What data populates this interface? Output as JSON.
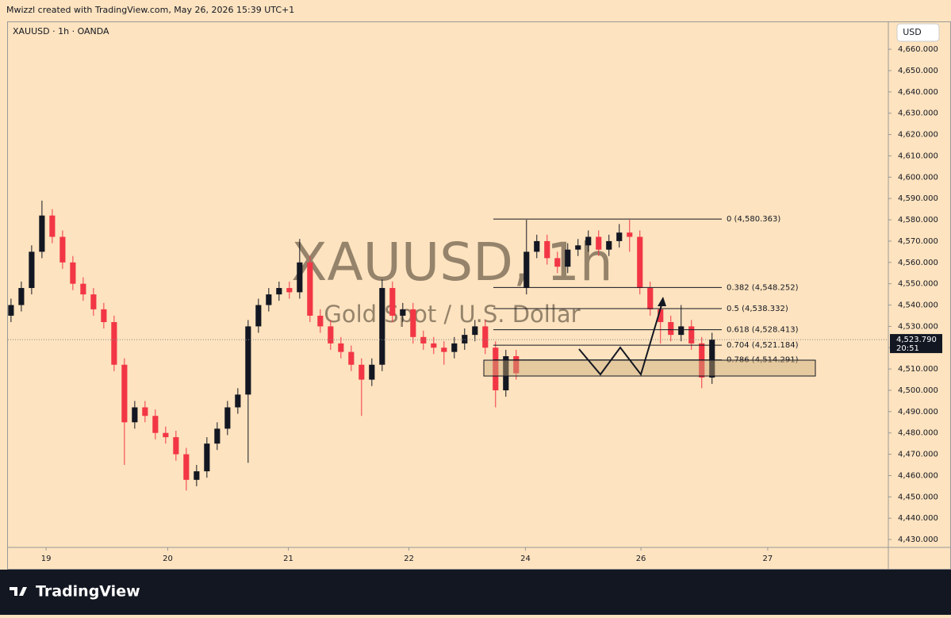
{
  "header": {
    "credit": "Mwizzl created with TradingView.com, May 26, 2026 15:39 UTC+1"
  },
  "chart_data": {
    "type": "candlestick",
    "symbol": "XAUUSD · 1h · OANDA",
    "watermark": "XAUUSD, 1h",
    "description": "Gold Spot / U.S. Dollar",
    "currency": "USD",
    "x": [
      0,
      1,
      2,
      3,
      4,
      5,
      6,
      7,
      8,
      9,
      10,
      11,
      12,
      13,
      14,
      15,
      16,
      17,
      18,
      19,
      20,
      21,
      22,
      23,
      24,
      25,
      26,
      27,
      28,
      29,
      30,
      31,
      32,
      33,
      34,
      35,
      36,
      37,
      38,
      39,
      40,
      41,
      42,
      43,
      44,
      45,
      46,
      47,
      48,
      49,
      50,
      51,
      52,
      53,
      54,
      55,
      56,
      57,
      58,
      59,
      60,
      61,
      62,
      63,
      64,
      65,
      66,
      67,
      68
    ],
    "open": [
      4535,
      4540,
      4548,
      4565,
      4582,
      4572,
      4560,
      4550,
      4545,
      4538,
      4532,
      4512,
      4485,
      4492,
      4488,
      4480,
      4478,
      4470,
      4458,
      4462,
      4475,
      4482,
      4492,
      4498,
      4530,
      4540,
      4545,
      4548,
      4546,
      4560,
      4535,
      4530,
      4522,
      4518,
      4512,
      4505,
      4512,
      4548,
      4535,
      4538,
      4525,
      4522,
      4520,
      4518,
      4522,
      4526,
      4530,
      4520,
      4500,
      4516,
      4548,
      4565,
      4570,
      4562,
      4558,
      4566,
      4568,
      4572,
      4566,
      4570,
      4574,
      4572,
      4548,
      4538,
      4532,
      4526,
      4530,
      4522,
      4506
    ],
    "high": [
      4543,
      4551,
      4568,
      4589,
      4585,
      4575,
      4563,
      4553,
      4548,
      4541,
      4535,
      4515,
      4495,
      4495,
      4491,
      4483,
      4481,
      4473,
      4465,
      4478,
      4485,
      4495,
      4501,
      4533,
      4543,
      4548,
      4551,
      4551,
      4571,
      4563,
      4538,
      4533,
      4525,
      4521,
      4515,
      4515,
      4552,
      4551,
      4541,
      4541,
      4528,
      4525,
      4523,
      4525,
      4529,
      4533,
      4533,
      4523,
      4519,
      4519,
      4580,
      4573,
      4573,
      4565,
      4569,
      4571,
      4575,
      4575,
      4573,
      4578,
      4580,
      4575,
      4551,
      4541,
      4535,
      4540,
      4533,
      4525,
      4527
    ],
    "low": [
      4532,
      4537,
      4545,
      4562,
      4569,
      4557,
      4547,
      4542,
      4535,
      4529,
      4509,
      4465,
      4482,
      4485,
      4477,
      4475,
      4467,
      4453,
      4455,
      4459,
      4472,
      4479,
      4489,
      4466,
      4527,
      4537,
      4542,
      4543,
      4543,
      4532,
      4527,
      4519,
      4515,
      4509,
      4488,
      4502,
      4509,
      4532,
      4532,
      4522,
      4519,
      4517,
      4512,
      4515,
      4519,
      4523,
      4517,
      4492,
      4497,
      4505,
      4545,
      4562,
      4559,
      4555,
      4555,
      4563,
      4565,
      4563,
      4563,
      4567,
      4565,
      4545,
      4535,
      4522,
      4523,
      4523,
      4519,
      4501,
      4503
    ],
    "close": [
      4540,
      4548,
      4565,
      4582,
      4572,
      4560,
      4550,
      4545,
      4538,
      4532,
      4512,
      4485,
      4492,
      4488,
      4480,
      4478,
      4470,
      4458,
      4462,
      4475,
      4482,
      4492,
      4498,
      4530,
      4540,
      4545,
      4548,
      4546,
      4560,
      4535,
      4530,
      4522,
      4518,
      4512,
      4505,
      4512,
      4548,
      4535,
      4538,
      4525,
      4522,
      4520,
      4518,
      4522,
      4526,
      4530,
      4520,
      4500,
      4516,
      4508,
      4565,
      4570,
      4562,
      4558,
      4566,
      4568,
      4572,
      4566,
      4570,
      4574,
      4572,
      4548,
      4538,
      4532,
      4526,
      4530,
      4522,
      4506,
      4523.79
    ],
    "up_color": "#131722",
    "down_color": "#f23645",
    "xlim": [
      -0.3,
      85.1
    ],
    "xticks": [
      {
        "value": 3.4,
        "label": "19"
      },
      {
        "value": 15.2,
        "label": "20"
      },
      {
        "value": 26.9,
        "label": "21"
      },
      {
        "value": 38.6,
        "label": "22"
      },
      {
        "value": 49.9,
        "label": "24"
      },
      {
        "value": 61.1,
        "label": "26"
      },
      {
        "value": 73.4,
        "label": "27"
      }
    ],
    "ylim": [
      4426.3,
      4672.7
    ],
    "yticks": [
      {
        "value": 4430,
        "label": "4,430.000"
      },
      {
        "value": 4440,
        "label": "4,440.000"
      },
      {
        "value": 4450,
        "label": "4,450.000"
      },
      {
        "value": 4460,
        "label": "4,460.000"
      },
      {
        "value": 4470,
        "label": "4,470.000"
      },
      {
        "value": 4480,
        "label": "4,480.000"
      },
      {
        "value": 4490,
        "label": "4,490.000"
      },
      {
        "value": 4500,
        "label": "4,500.000"
      },
      {
        "value": 4510,
        "label": "4,510.000"
      },
      {
        "value": 4520,
        "label": "4,520.000"
      },
      {
        "value": 4530,
        "label": "4,530.000"
      },
      {
        "value": 4540,
        "label": "4,540.000"
      },
      {
        "value": 4550,
        "label": "4,550.000"
      },
      {
        "value": 4560,
        "label": "4,560.000"
      },
      {
        "value": 4570,
        "label": "4,570.000"
      },
      {
        "value": 4580,
        "label": "4,580.000"
      },
      {
        "value": 4590,
        "label": "4,590.000"
      },
      {
        "value": 4600,
        "label": "4,600.000"
      },
      {
        "value": 4610,
        "label": "4,610.000"
      },
      {
        "value": 4620,
        "label": "4,620.000"
      },
      {
        "value": 4630,
        "label": "4,630.000"
      },
      {
        "value": 4640,
        "label": "4,640.000"
      },
      {
        "value": 4650,
        "label": "4,650.000"
      },
      {
        "value": 4660,
        "label": "4,660.000"
      }
    ],
    "fib_levels": [
      {
        "value": 4580.363,
        "label": "0 (4,580.363)"
      },
      {
        "value": 4548.252,
        "label": "0.382 (4,548.252)"
      },
      {
        "value": 4538.332,
        "label": "0.5 (4,538.332)"
      },
      {
        "value": 4528.413,
        "label": "0.618 (4,528.413)"
      },
      {
        "value": 4521.184,
        "label": "0.704 (4,521.184)"
      },
      {
        "value": 4514.291,
        "label": "0.786 (4,514.291)"
      }
    ],
    "last_price": {
      "value": 4523.79,
      "label": "4,523.790"
    },
    "countdown": "20:51"
  },
  "footer": {
    "brand": "TradingView"
  }
}
